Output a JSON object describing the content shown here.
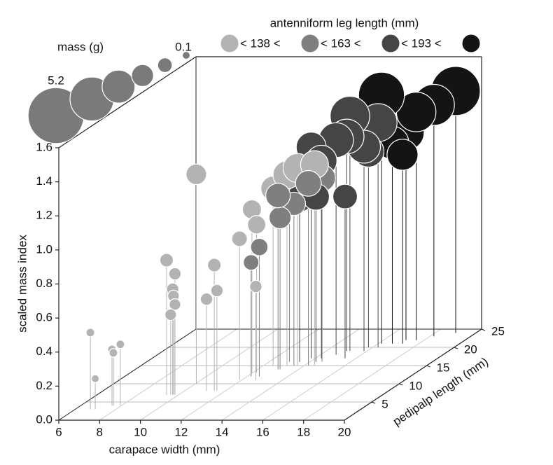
{
  "chart_data": {
    "type": "bubble3d",
    "xlabel": "carapace width (mm)",
    "ylabel": "scaled mass index",
    "zlabel": "pedipalp length (mm)",
    "xlim": [
      6,
      20
    ],
    "xticks": [
      6,
      8,
      10,
      12,
      14,
      16,
      18,
      20
    ],
    "ylim": [
      0,
      1.6
    ],
    "yticks": [
      {
        "value": 0,
        "label": "0.0"
      },
      0.2,
      0.4,
      0.6,
      0.8,
      {
        "value": 1,
        "label": "1.0"
      },
      1.2,
      1.4,
      1.6
    ],
    "zlim": [
      0,
      25
    ],
    "zticks": [
      5,
      10,
      15,
      20,
      25
    ],
    "grid": true,
    "size_legend": {
      "title": "mass (g)",
      "values": [
        5.2,
        3.2,
        1.8,
        0.8,
        0.35,
        0.1
      ]
    },
    "color_legend": {
      "title": "antenniform leg length (mm)",
      "labels": [
        "< 138 <",
        "< 163 <",
        "< 193 <"
      ]
    },
    "series": [
      {
        "color": "#b3b3b3",
        "x": [
          6.74,
          6.98,
          7.53,
          7.6,
          7.94,
          9.4,
          9.81,
          9.7,
          9.74,
          9.81,
          9.6,
          10.05,
          11.09,
          11.47,
          11.6,
          11.9,
          12.7,
          11.97,
          12.2,
          12.47,
          13.15,
          13.67,
          14.5
        ],
        "values": [
          0.45,
          0.18,
          0.33,
          0.31,
          0.36,
          0.79,
          0.71,
          0.62,
          0.58,
          0.53,
          0.47,
          1.23,
          0.54,
          0.74,
          0.59,
          0.83,
          0.55,
          0.96,
          0.87,
          1.04,
          1.12,
          1.16,
          1.18
        ],
        "z": [
          3,
          3,
          4,
          4,
          4,
          7,
          7,
          7,
          7,
          7,
          7,
          10,
          8,
          8,
          8,
          11,
          11,
          13,
          13,
          15,
          15,
          15,
          15
        ],
        "sizes": [
          0.12,
          0.1,
          0.12,
          0.12,
          0.12,
          0.3,
          0.25,
          0.25,
          0.22,
          0.22,
          0.22,
          0.7,
          0.25,
          0.3,
          0.25,
          0.4,
          0.25,
          0.6,
          0.55,
          1.0,
          1.3,
          1.4,
          1.3
        ]
      },
      {
        "color": "#7f7f7f",
        "x": [
          12.2,
          12.6,
          13.08,
          13.49,
          12.98,
          14.2,
          14.6,
          13.0
        ],
        "values": [
          0.67,
          0.76,
          0.89,
          0.95,
          1.02,
          1.07,
          1.08,
          1.1
        ],
        "z": [
          12,
          12,
          14,
          15,
          14,
          15,
          16,
          16
        ],
        "sizes": [
          0.4,
          0.5,
          0.8,
          0.9,
          1.0,
          1.1,
          1.2,
          1.0
        ]
      },
      {
        "color": "#454545",
        "x": [
          13.5,
          14.3,
          15.46,
          13.8,
          14.3,
          14.75,
          15.16,
          15.85,
          16.27,
          15.0,
          15.8
        ],
        "values": [
          0.96,
          0.97,
          0.95,
          1.24,
          1.16,
          1.26,
          1.38,
          1.2,
          1.32,
          1.26,
          1.15
        ],
        "z": [
          16,
          16,
          17,
          17,
          17,
          18,
          19,
          19,
          20,
          19,
          20
        ],
        "sizes": [
          1.2,
          1.2,
          1.0,
          1.5,
          1.6,
          2.0,
          2.6,
          1.8,
          2.4,
          2.0,
          1.6
        ]
      },
      {
        "color": "#141414",
        "x": [
          16.17,
          16.7,
          17.1,
          17.6,
          18.2,
          19,
          17.2
        ],
        "values": [
          1.46,
          1.18,
          1.22,
          1.34,
          1.36,
          1.42,
          1.11
        ],
        "z": [
          21,
          21,
          22,
          22,
          23,
          24,
          21
        ],
        "sizes": [
          3.5,
          1.8,
          2.2,
          2.6,
          2.8,
          4.0,
          1.6
        ]
      }
    ]
  }
}
